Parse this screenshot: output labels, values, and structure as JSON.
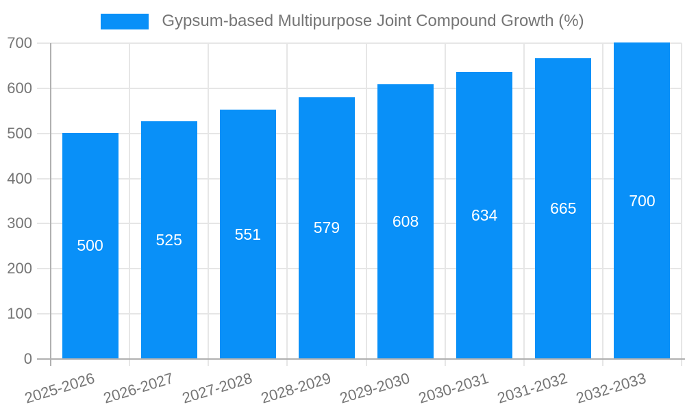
{
  "legend": {
    "label": "Gypsum-based Multipurpose Joint Compound Growth (%)",
    "swatch_color": "#0990F8",
    "position": "top-center"
  },
  "chart_data": {
    "type": "bar",
    "title": "Gypsum-based Multipurpose Joint Compound Growth (%)",
    "categories": [
      "2025-2026",
      "2026-2027",
      "2027-2028",
      "2028-2029",
      "2029-2030",
      "2030-2031",
      "2031-2032",
      "2032-2033"
    ],
    "values": [
      500,
      525,
      551,
      579,
      608,
      634,
      665,
      700
    ],
    "xlabel": "",
    "ylabel": "",
    "ylim": [
      0,
      700
    ],
    "yticks": [
      0,
      100,
      200,
      300,
      400,
      500,
      600,
      700
    ],
    "grid": true,
    "legend_position": "top-center",
    "bar_color": "#0990F8",
    "value_label_color": "#FFFFFF",
    "axis_text_color": "#757575",
    "grid_color": "#E6E6E6",
    "axis_line_color": "#B0B0B0",
    "background_color": "#FFFFFF"
  }
}
